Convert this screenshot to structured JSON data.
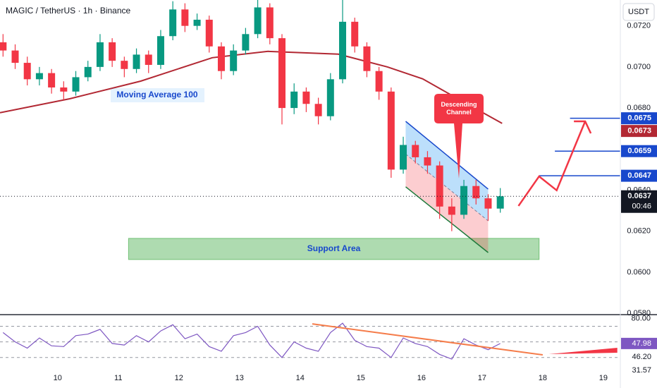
{
  "chart_data": {
    "type": "candlestick",
    "title": "MAGIC / TetherUS · 1h · Binance",
    "currency": "USDT",
    "x": [
      9.1,
      9.3,
      9.5,
      9.7,
      9.9,
      10.1,
      10.3,
      10.5,
      10.7,
      10.9,
      11.1,
      11.3,
      11.5,
      11.7,
      11.9,
      12.1,
      12.3,
      12.5,
      12.7,
      12.9,
      13.1,
      13.3,
      13.5,
      13.7,
      13.9,
      14.1,
      14.3,
      14.5,
      14.7,
      14.9,
      15.1,
      15.3,
      15.5,
      15.7,
      15.9,
      16.1,
      16.3,
      16.5,
      16.7,
      16.9,
      17.1,
      17.3
    ],
    "open": [
      0.0712,
      0.0708,
      0.0702,
      0.0694,
      0.0697,
      0.069,
      0.0688,
      0.0695,
      0.07,
      0.0712,
      0.0703,
      0.0699,
      0.0706,
      0.0701,
      0.0715,
      0.0728,
      0.072,
      0.0723,
      0.071,
      0.0698,
      0.0708,
      0.0716,
      0.0729,
      0.0714,
      0.068,
      0.0688,
      0.0682,
      0.0676,
      0.0694,
      0.0722,
      0.071,
      0.0698,
      0.0688,
      0.065,
      0.0662,
      0.0656,
      0.0652,
      0.0632,
      0.0628,
      0.0642,
      0.0636,
      0.0631
    ],
    "high": [
      0.0716,
      0.0711,
      0.0705,
      0.07,
      0.0699,
      0.0693,
      0.0698,
      0.0703,
      0.0716,
      0.0714,
      0.0705,
      0.0709,
      0.0708,
      0.0718,
      0.0732,
      0.0731,
      0.0726,
      0.0725,
      0.0712,
      0.0711,
      0.0719,
      0.0733,
      0.0731,
      0.0716,
      0.0692,
      0.069,
      0.0685,
      0.0697,
      0.0733,
      0.0724,
      0.0712,
      0.07,
      0.069,
      0.0666,
      0.0664,
      0.0659,
      0.0654,
      0.0636,
      0.0645,
      0.0645,
      0.0638,
      0.0641
    ],
    "low": [
      0.0705,
      0.0699,
      0.0691,
      0.0691,
      0.0687,
      0.0684,
      0.0686,
      0.0693,
      0.0698,
      0.07,
      0.0695,
      0.0697,
      0.0697,
      0.0699,
      0.0713,
      0.0717,
      0.0718,
      0.0707,
      0.0694,
      0.0696,
      0.0706,
      0.0714,
      0.0711,
      0.0672,
      0.0677,
      0.0678,
      0.0672,
      0.0674,
      0.0692,
      0.0707,
      0.0695,
      0.0684,
      0.0646,
      0.0648,
      0.0653,
      0.0648,
      0.0626,
      0.062,
      0.0626,
      0.0633,
      0.0625,
      0.0629
    ],
    "close": [
      0.0708,
      0.0702,
      0.0694,
      0.0697,
      0.069,
      0.0688,
      0.0695,
      0.07,
      0.0712,
      0.0703,
      0.0699,
      0.0706,
      0.0701,
      0.0715,
      0.0728,
      0.072,
      0.0723,
      0.071,
      0.0698,
      0.0708,
      0.0716,
      0.0729,
      0.0714,
      0.068,
      0.0688,
      0.0682,
      0.0676,
      0.0694,
      0.0722,
      0.071,
      0.0698,
      0.0688,
      0.065,
      0.0662,
      0.0656,
      0.0652,
      0.0632,
      0.0628,
      0.0642,
      0.0636,
      0.0631,
      0.0637
    ],
    "up_color": "#089981",
    "down_color": "#f23645",
    "xlim": [
      9.05,
      19.28
    ],
    "xticks": [
      10,
      11,
      12,
      13,
      14,
      15,
      16,
      17,
      18,
      19
    ],
    "ylim": [
      0.05797,
      0.07326
    ],
    "yticks": [
      {
        "value": 0.072,
        "label": "0.0720"
      },
      {
        "value": 0.07,
        "label": "0.0700"
      },
      {
        "value": 0.068,
        "label": "0.0680"
      },
      {
        "value": 0.064,
        "label": "0.0640"
      },
      {
        "value": 0.062,
        "label": "0.0620"
      },
      {
        "value": 0.06,
        "label": "0.0600"
      },
      {
        "value": 0.058,
        "label": "0.0580"
      }
    ],
    "ma": {
      "name": "Moving Average 100",
      "color": "#b22833",
      "x": [
        9.05,
        10.2,
        11.37,
        12.55,
        13.47,
        14.63,
        15.44,
        16.02,
        16.6,
        17.33
      ],
      "values": [
        0.06777,
        0.06845,
        0.06931,
        0.07045,
        0.07076,
        0.07062,
        0.07,
        0.06942,
        0.06845,
        0.06725
      ]
    },
    "channel": {
      "label": "Descending Channel",
      "x": [
        15.74,
        17.1
      ],
      "upper": [
        0.06735,
        0.06405
      ],
      "lower": [
        0.06416,
        0.06096
      ]
    },
    "support": {
      "label": "Support Area",
      "x": [
        11.17,
        17.94
      ],
      "y": [
        0.06062,
        0.06165
      ]
    },
    "levels": [
      {
        "x": 17.94,
        "value": 0.0647
      },
      {
        "x": 18.2,
        "value": 0.0659
      },
      {
        "x": 18.45,
        "value": 0.0675
      }
    ],
    "projection": {
      "x": [
        17.6,
        17.94,
        18.23,
        18.7
      ],
      "values": [
        0.06323,
        0.06467,
        0.06399,
        0.06735
      ]
    },
    "price_tags": [
      {
        "value": 0.0675,
        "label": "0.0675",
        "color": "#1848cc"
      },
      {
        "value": 0.0673,
        "label": "0.0673",
        "color": "#b22833"
      },
      {
        "value": 0.0659,
        "label": "0.0659",
        "color": "#1848cc"
      },
      {
        "value": 0.0647,
        "label": "0.0647",
        "color": "#1848cc"
      },
      {
        "value": 0.0637,
        "label": "0.0637",
        "color": "#131722",
        "countdown": "00:46"
      }
    ],
    "rsi": {
      "color": "#7e57c2",
      "values": [
        62,
        50,
        42,
        55,
        45,
        44,
        58,
        60,
        66,
        48,
        46,
        58,
        50,
        64,
        72,
        54,
        60,
        44,
        38,
        58,
        62,
        70,
        46,
        30,
        50,
        42,
        38,
        62,
        74,
        52,
        44,
        42,
        30,
        55,
        48,
        44,
        34,
        28,
        54,
        46,
        40,
        48
      ],
      "ylim": [
        0,
        84
      ],
      "yticks": [
        {
          "value": 80,
          "label": "80.00"
        }
      ],
      "bands": [
        70,
        50,
        30
      ],
      "tags": [
        {
          "value": 47.98,
          "label": "47.98"
        },
        {
          "value": 46.2,
          "label": "46.20"
        },
        {
          "value": 31.57,
          "label": "31.57"
        }
      ],
      "trendline": {
        "x": [
          14.2,
          18.0
        ],
        "values": [
          73,
          33.4
        ]
      },
      "divergence": {
        "x": [
          18.1,
          19.23,
          19.23
        ],
        "values": [
          34.3,
          42.4,
          36.1
        ]
      }
    }
  }
}
